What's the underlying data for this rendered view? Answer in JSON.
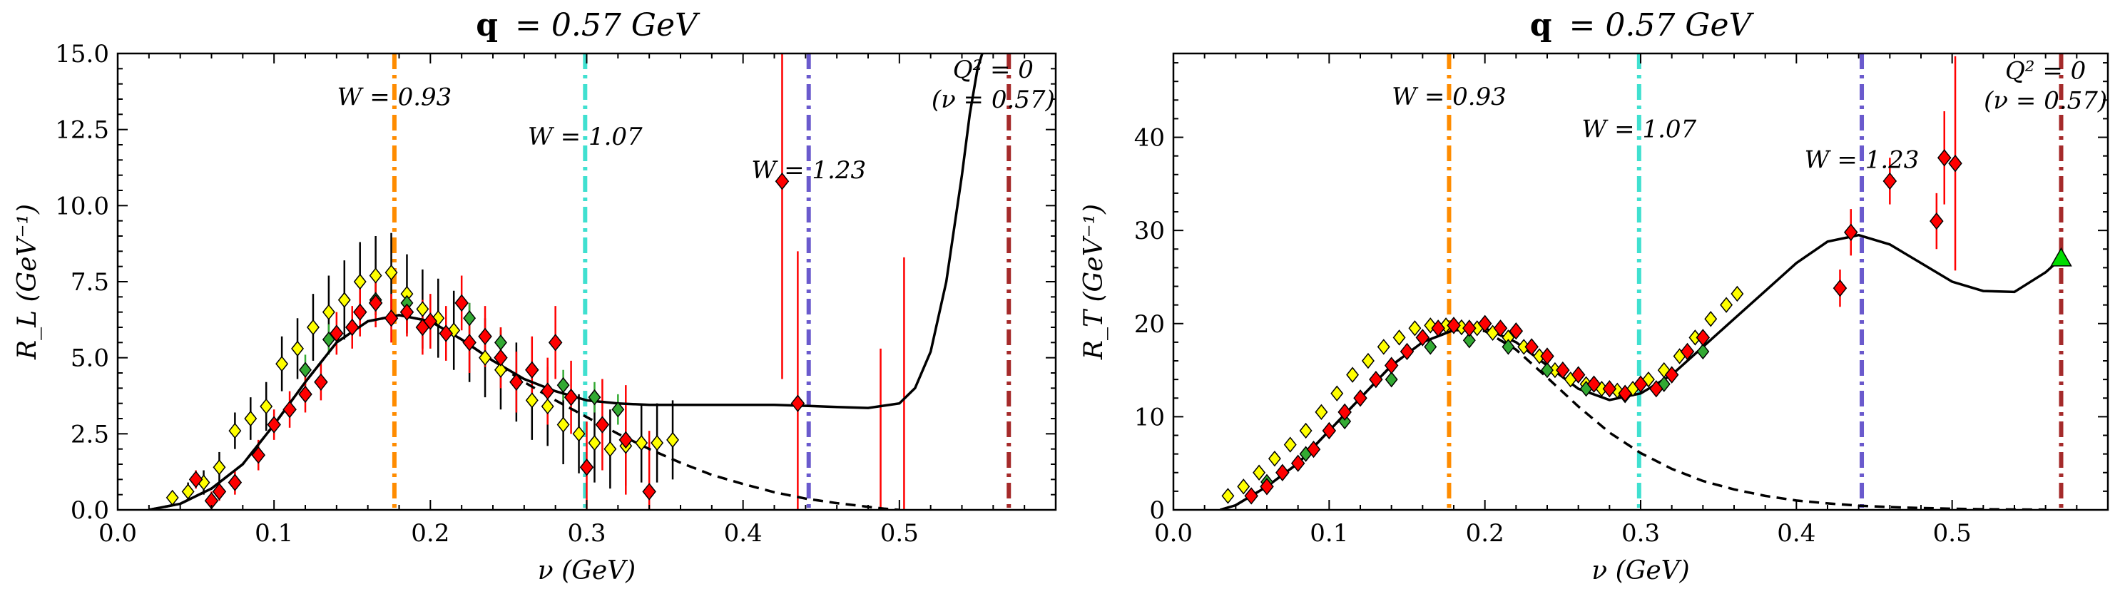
{
  "chart_data": [
    {
      "type": "scatter",
      "title": "q = 0.57 GeV",
      "title_bold": "q",
      "title_rest": "= 0.57 GeV",
      "xlabel": "ν (GeV)",
      "ylabel": "R_L (GeV⁻¹)",
      "xlim": [
        0.0,
        0.6
      ],
      "ylim": [
        0.0,
        15.0
      ],
      "xticks": [
        0.0,
        0.1,
        0.2,
        0.3,
        0.4,
        0.5
      ],
      "xtick_labels": [
        "0.0",
        "0.1",
        "0.2",
        "0.3",
        "0.4",
        "0.5"
      ],
      "yticks": [
        0.0,
        2.5,
        5.0,
        7.5,
        10.0,
        12.5,
        15.0
      ],
      "ytick_labels": [
        "0.0",
        "2.5",
        "5.0",
        "7.5",
        "10.0",
        "12.5",
        "15.0"
      ],
      "grid": false,
      "vlines": [
        {
          "x": 0.177,
          "color": "#ff8c00",
          "label": "W = 0.93",
          "label_x": 0.177,
          "label_y": 13.3
        },
        {
          "x": 0.299,
          "color": "#40e0d0",
          "label": "W = 1.07",
          "label_x": 0.299,
          "label_y": 12.0
        },
        {
          "x": 0.442,
          "color": "#6a5acd",
          "label": "W = 1.23",
          "label_x": 0.442,
          "label_y": 10.9
        },
        {
          "x": 0.57,
          "color": "#a52a2a",
          "label": "Q² = 0",
          "label2": "(ν = 0.57)",
          "label_x": 0.56,
          "label_y": 14.2
        }
      ],
      "lines": [
        {
          "style": "solid",
          "x": [
            0.02,
            0.04,
            0.06,
            0.08,
            0.1,
            0.12,
            0.14,
            0.16,
            0.18,
            0.2,
            0.22,
            0.24,
            0.26,
            0.28,
            0.3,
            0.32,
            0.34,
            0.36,
            0.38,
            0.4,
            0.42,
            0.44,
            0.46,
            0.48,
            0.5,
            0.51,
            0.52,
            0.53,
            0.54,
            0.545,
            0.55,
            0.553
          ],
          "y": [
            0.0,
            0.2,
            0.7,
            1.5,
            2.8,
            4.2,
            5.5,
            6.2,
            6.4,
            6.2,
            5.6,
            4.9,
            4.3,
            3.9,
            3.6,
            3.5,
            3.45,
            3.45,
            3.45,
            3.45,
            3.45,
            3.42,
            3.38,
            3.35,
            3.5,
            4.0,
            5.2,
            7.5,
            11.0,
            13.0,
            14.5,
            15.0
          ]
        },
        {
          "style": "dashed",
          "x": [
            0.02,
            0.04,
            0.06,
            0.08,
            0.1,
            0.12,
            0.14,
            0.16,
            0.18,
            0.2,
            0.22,
            0.24,
            0.26,
            0.28,
            0.3,
            0.32,
            0.34,
            0.36,
            0.38,
            0.4,
            0.42,
            0.44,
            0.46,
            0.48,
            0.49,
            0.5
          ],
          "y": [
            0.0,
            0.2,
            0.7,
            1.5,
            2.8,
            4.2,
            5.5,
            6.2,
            6.4,
            6.2,
            5.6,
            4.9,
            4.2,
            3.6,
            3.05,
            2.5,
            2.0,
            1.55,
            1.15,
            0.85,
            0.58,
            0.37,
            0.22,
            0.1,
            0.04,
            0.0
          ]
        }
      ],
      "series": [
        {
          "marker": "diamond",
          "color": "#ffff00",
          "x": [
            0.035,
            0.045,
            0.055,
            0.065,
            0.075,
            0.085,
            0.095,
            0.105,
            0.115,
            0.125,
            0.135,
            0.145,
            0.155,
            0.165,
            0.175,
            0.185,
            0.195,
            0.205,
            0.215,
            0.225,
            0.235,
            0.245,
            0.255,
            0.265,
            0.275,
            0.285,
            0.295,
            0.305,
            0.315,
            0.325,
            0.335,
            0.345,
            0.355
          ],
          "y": [
            0.4,
            0.6,
            0.9,
            1.4,
            2.6,
            3.0,
            3.4,
            4.8,
            5.3,
            6.0,
            6.5,
            6.9,
            7.5,
            7.7,
            7.8,
            7.1,
            6.6,
            6.3,
            5.9,
            5.5,
            5.0,
            4.6,
            4.2,
            3.6,
            3.4,
            2.8,
            2.5,
            2.2,
            2.0,
            2.1,
            2.2,
            2.2,
            2.3
          ],
          "err": [
            0.2,
            0.3,
            0.4,
            0.5,
            0.6,
            0.7,
            0.8,
            0.9,
            1.0,
            1.1,
            1.2,
            1.3,
            1.3,
            1.3,
            1.3,
            1.3,
            1.3,
            1.3,
            1.3,
            1.3,
            1.3,
            1.3,
            1.3,
            1.3,
            1.3,
            1.3,
            1.3,
            1.3,
            1.3,
            1.3,
            1.3,
            1.3,
            1.3
          ]
        },
        {
          "marker": "diamond",
          "color": "#33aa33",
          "x": [
            0.12,
            0.135,
            0.165,
            0.185,
            0.225,
            0.245,
            0.285,
            0.305,
            0.32
          ],
          "y": [
            4.6,
            5.6,
            6.9,
            6.8,
            6.3,
            5.5,
            4.1,
            3.7,
            3.3
          ],
          "err": [
            0.5,
            0.5,
            0.5,
            0.5,
            0.5,
            0.5,
            0.5,
            0.5,
            0.5
          ]
        },
        {
          "marker": "diamond",
          "color": "#ff0000",
          "x": [
            0.05,
            0.06,
            0.065,
            0.075,
            0.09,
            0.1,
            0.11,
            0.12,
            0.13,
            0.14,
            0.15,
            0.155,
            0.165,
            0.175,
            0.185,
            0.195,
            0.2,
            0.21,
            0.22,
            0.225,
            0.235,
            0.245,
            0.255,
            0.265,
            0.275,
            0.28,
            0.29,
            0.3,
            0.31,
            0.325,
            0.34,
            0.425,
            0.435
          ],
          "y": [
            1.0,
            0.3,
            0.6,
            0.9,
            1.8,
            2.8,
            3.3,
            3.8,
            4.2,
            5.8,
            6.0,
            6.5,
            6.8,
            6.3,
            6.5,
            6.0,
            6.2,
            5.8,
            6.8,
            5.5,
            5.7,
            5.0,
            4.2,
            4.6,
            3.9,
            5.5,
            3.7,
            1.4,
            2.8,
            2.3,
            0.6,
            10.8,
            3.5
          ],
          "err": [
            0.3,
            0.3,
            0.3,
            0.4,
            0.5,
            0.5,
            0.6,
            0.6,
            0.6,
            0.7,
            0.7,
            0.8,
            0.8,
            0.8,
            0.8,
            0.9,
            0.9,
            0.9,
            0.9,
            1.0,
            1.0,
            1.0,
            1.0,
            1.1,
            1.1,
            1.2,
            1.2,
            1.5,
            1.5,
            1.8,
            2.0,
            6.5,
            5.0
          ]
        }
      ],
      "extra_errbars": [
        {
          "x": 0.488,
          "ylo": 0.0,
          "yhi": 5.3
        },
        {
          "x": 0.503,
          "ylo": 0.0,
          "yhi": 8.3
        }
      ]
    },
    {
      "type": "scatter",
      "title": "q = 0.57 GeV",
      "title_bold": "q",
      "title_rest": "= 0.57 GeV",
      "xlabel": "ν (GeV)",
      "ylabel": "R_T (GeV⁻¹)",
      "xlim": [
        0.0,
        0.6
      ],
      "ylim": [
        0.0,
        49.0
      ],
      "xticks": [
        0.0,
        0.1,
        0.2,
        0.3,
        0.4,
        0.5
      ],
      "xtick_labels": [
        "0.0",
        "0.1",
        "0.2",
        "0.3",
        "0.4",
        "0.5"
      ],
      "yticks": [
        0,
        10,
        20,
        30,
        40
      ],
      "ytick_labels": [
        "0",
        "10",
        "20",
        "30",
        "40"
      ],
      "grid": false,
      "vlines": [
        {
          "x": 0.177,
          "color": "#ff8c00",
          "label": "W = 0.93",
          "label_x": 0.177,
          "label_y": 43.5
        },
        {
          "x": 0.299,
          "color": "#40e0d0",
          "label": "W = 1.07",
          "label_x": 0.299,
          "label_y": 40.0
        },
        {
          "x": 0.442,
          "color": "#6a5acd",
          "label": "W = 1.23",
          "label_x": 0.442,
          "label_y": 36.7
        },
        {
          "x": 0.57,
          "color": "#a52a2a",
          "label": "Q² = 0",
          "label2": "(ν = 0.57)",
          "label_x": 0.56,
          "label_y": 46.3
        }
      ],
      "lines": [
        {
          "style": "solid",
          "x": [
            0.03,
            0.04,
            0.06,
            0.08,
            0.1,
            0.12,
            0.14,
            0.16,
            0.18,
            0.2,
            0.22,
            0.24,
            0.26,
            0.28,
            0.3,
            0.32,
            0.34,
            0.36,
            0.38,
            0.4,
            0.42,
            0.44,
            0.46,
            0.48,
            0.5,
            0.52,
            0.54,
            0.56,
            0.57
          ],
          "y": [
            0.0,
            0.5,
            2.5,
            5.0,
            8.5,
            12.0,
            15.5,
            18.0,
            19.3,
            19.5,
            18.0,
            15.5,
            13.0,
            11.8,
            12.5,
            14.5,
            17.5,
            20.5,
            23.5,
            26.5,
            28.8,
            29.5,
            28.5,
            26.5,
            24.5,
            23.5,
            23.4,
            25.5,
            27.0
          ]
        },
        {
          "style": "dashed",
          "x": [
            0.03,
            0.04,
            0.06,
            0.08,
            0.1,
            0.12,
            0.14,
            0.16,
            0.18,
            0.2,
            0.22,
            0.24,
            0.26,
            0.28,
            0.3,
            0.32,
            0.34,
            0.36,
            0.38,
            0.4,
            0.42,
            0.44,
            0.46,
            0.48,
            0.5,
            0.52,
            0.54,
            0.56
          ],
          "y": [
            0.0,
            0.5,
            2.5,
            5.0,
            8.5,
            12.0,
            15.5,
            18.0,
            19.3,
            19.2,
            17.2,
            14.2,
            11.1,
            8.3,
            6.1,
            4.4,
            3.1,
            2.2,
            1.5,
            1.0,
            0.7,
            0.45,
            0.3,
            0.2,
            0.12,
            0.07,
            0.04,
            0.02
          ]
        }
      ],
      "series": [
        {
          "marker": "diamond",
          "color": "#ffff00",
          "x": [
            0.035,
            0.045,
            0.055,
            0.065,
            0.075,
            0.085,
            0.095,
            0.105,
            0.115,
            0.125,
            0.135,
            0.145,
            0.155,
            0.165,
            0.175,
            0.185,
            0.195,
            0.205,
            0.215,
            0.225,
            0.235,
            0.245,
            0.255,
            0.265,
            0.275,
            0.285,
            0.295,
            0.305,
            0.315,
            0.325,
            0.335,
            0.345,
            0.355,
            0.362
          ],
          "y": [
            1.5,
            2.5,
            4.0,
            5.5,
            7.0,
            8.5,
            10.5,
            12.5,
            14.5,
            16.0,
            17.5,
            18.5,
            19.5,
            19.8,
            19.8,
            19.6,
            19.5,
            19.0,
            18.5,
            17.5,
            16.5,
            15.0,
            14.0,
            13.5,
            13.0,
            12.8,
            13.0,
            14.0,
            15.0,
            16.5,
            18.5,
            20.5,
            22.0,
            23.2
          ],
          "err": [
            0.3,
            0.3,
            0.3,
            0.4,
            0.4,
            0.4,
            0.5,
            0.5,
            0.5,
            0.5,
            0.5,
            0.5,
            0.5,
            0.5,
            0.5,
            0.5,
            0.5,
            0.5,
            0.5,
            0.5,
            0.5,
            0.5,
            0.5,
            0.5,
            0.5,
            0.5,
            0.5,
            0.5,
            0.5,
            0.5,
            0.5,
            0.5,
            0.5,
            0.5
          ]
        },
        {
          "marker": "diamond",
          "color": "#33aa33",
          "x": [
            0.06,
            0.085,
            0.11,
            0.14,
            0.165,
            0.19,
            0.215,
            0.24,
            0.265,
            0.29,
            0.315,
            0.34
          ],
          "y": [
            3.0,
            6.0,
            9.5,
            14.0,
            17.5,
            18.2,
            17.5,
            15.0,
            13.0,
            12.3,
            13.5,
            17.0
          ],
          "err": [
            0.4,
            0.4,
            0.4,
            0.4,
            0.4,
            0.4,
            0.4,
            0.4,
            0.4,
            0.4,
            0.4,
            0.4
          ]
        },
        {
          "marker": "diamond",
          "color": "#ff0000",
          "x": [
            0.05,
            0.06,
            0.07,
            0.08,
            0.09,
            0.1,
            0.11,
            0.12,
            0.13,
            0.14,
            0.15,
            0.16,
            0.17,
            0.18,
            0.19,
            0.2,
            0.21,
            0.22,
            0.23,
            0.24,
            0.25,
            0.26,
            0.27,
            0.28,
            0.29,
            0.3,
            0.31,
            0.32,
            0.33,
            0.34,
            0.428,
            0.435,
            0.46,
            0.49,
            0.495,
            0.502
          ],
          "y": [
            1.5,
            2.5,
            4.0,
            5.0,
            6.5,
            8.5,
            10.5,
            12.0,
            14.0,
            15.5,
            17.0,
            18.5,
            19.5,
            19.8,
            19.5,
            20.0,
            19.5,
            19.2,
            17.5,
            16.5,
            15.0,
            14.5,
            13.5,
            13.0,
            12.5,
            13.5,
            13.0,
            14.5,
            17.0,
            18.5,
            23.8,
            29.8,
            35.3,
            31.0,
            37.8,
            37.2
          ],
          "err": [
            0.5,
            0.5,
            0.5,
            0.6,
            0.6,
            0.6,
            0.7,
            0.7,
            0.7,
            0.8,
            0.8,
            0.8,
            0.8,
            0.8,
            0.8,
            0.8,
            0.8,
            0.8,
            0.8,
            0.8,
            0.8,
            0.8,
            0.8,
            0.8,
            0.8,
            0.8,
            0.8,
            0.8,
            0.8,
            0.8,
            2.0,
            2.5,
            2.5,
            3.0,
            5.0,
            11.5
          ]
        },
        {
          "marker": "triangle",
          "color": "#00dd00",
          "x": [
            0.57
          ],
          "y": [
            27.0
          ],
          "err": [
            0
          ]
        }
      ],
      "extra_errbars": []
    }
  ]
}
